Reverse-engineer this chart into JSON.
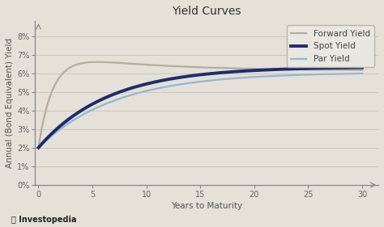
{
  "title": "Yield Curves",
  "xlabel": "Years to Maturity",
  "ylabel": "Annual (Bond Equivalent) Yield",
  "background_color": "#e5e0d8",
  "plot_bg_color": "#e5e0d8",
  "grid_color": "#ccc7be",
  "x_ticks": [
    0,
    5,
    10,
    15,
    20,
    25,
    30
  ],
  "y_ticks": [
    0,
    1,
    2,
    3,
    4,
    5,
    6,
    7,
    8
  ],
  "xlim": [
    -0.3,
    31.5
  ],
  "ylim": [
    0,
    8.8
  ],
  "forward_color": "#b5ada0",
  "spot_color": "#1c2d6b",
  "par_color": "#90b8d4",
  "forward_lw": 1.6,
  "spot_lw": 2.8,
  "par_lw": 1.6,
  "legend_labels": [
    "Forward Yield",
    "Spot Yield",
    "Par Yield"
  ],
  "investopedia_text": "Investopedia",
  "title_fontsize": 10,
  "label_fontsize": 7.5,
  "tick_fontsize": 7,
  "legend_fontsize": 7.5
}
